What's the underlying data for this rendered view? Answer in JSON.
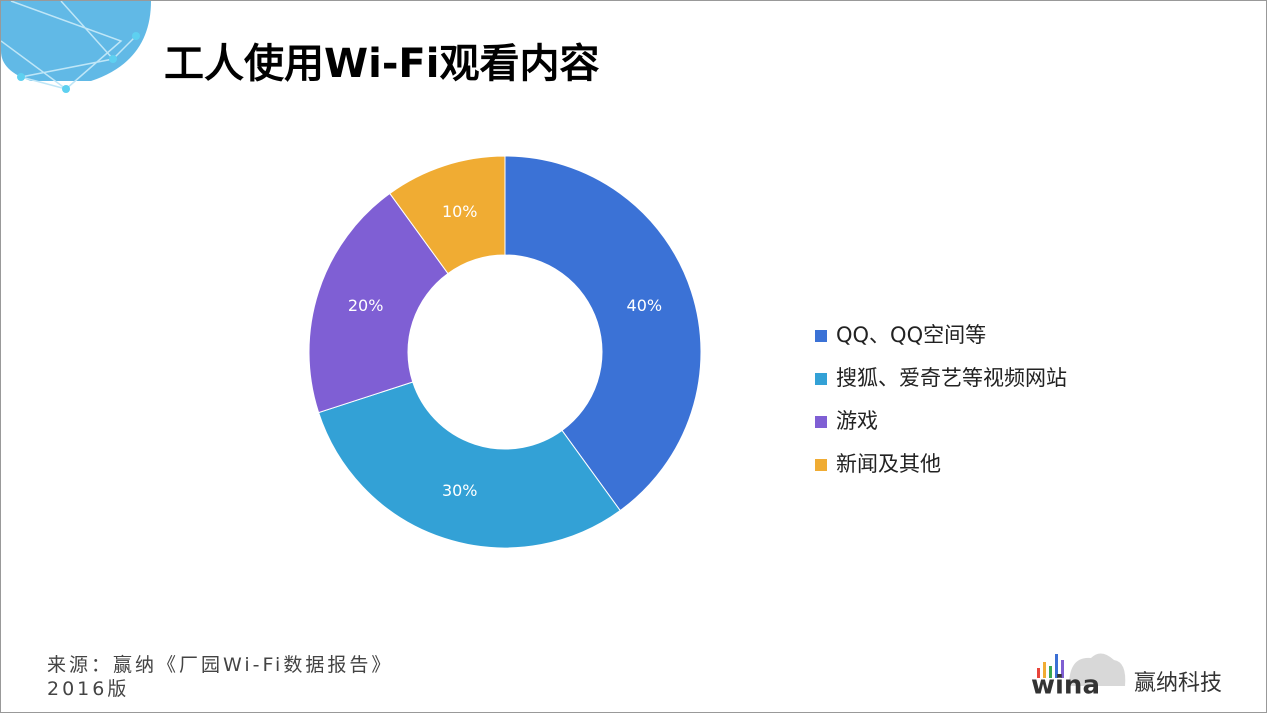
{
  "chart_data": {
    "type": "donut",
    "title": "工人使用Wi-Fi观看内容",
    "categories": [
      "QQ、QQ空间等",
      "搜狐、爱奇艺等视频网站",
      "游戏",
      "新闻及其他"
    ],
    "values": [
      40,
      30,
      20,
      10
    ],
    "value_labels": [
      "40%",
      "30%",
      "20%",
      "10%"
    ],
    "colors": [
      "#3b72d6",
      "#33a1d6",
      "#7f5fd4",
      "#f0ac33"
    ],
    "source": "来源：赢纳《厂园Wi-Fi数据报告》2016版"
  },
  "logo": {
    "text": "wina",
    "company": "赢纳科技"
  }
}
